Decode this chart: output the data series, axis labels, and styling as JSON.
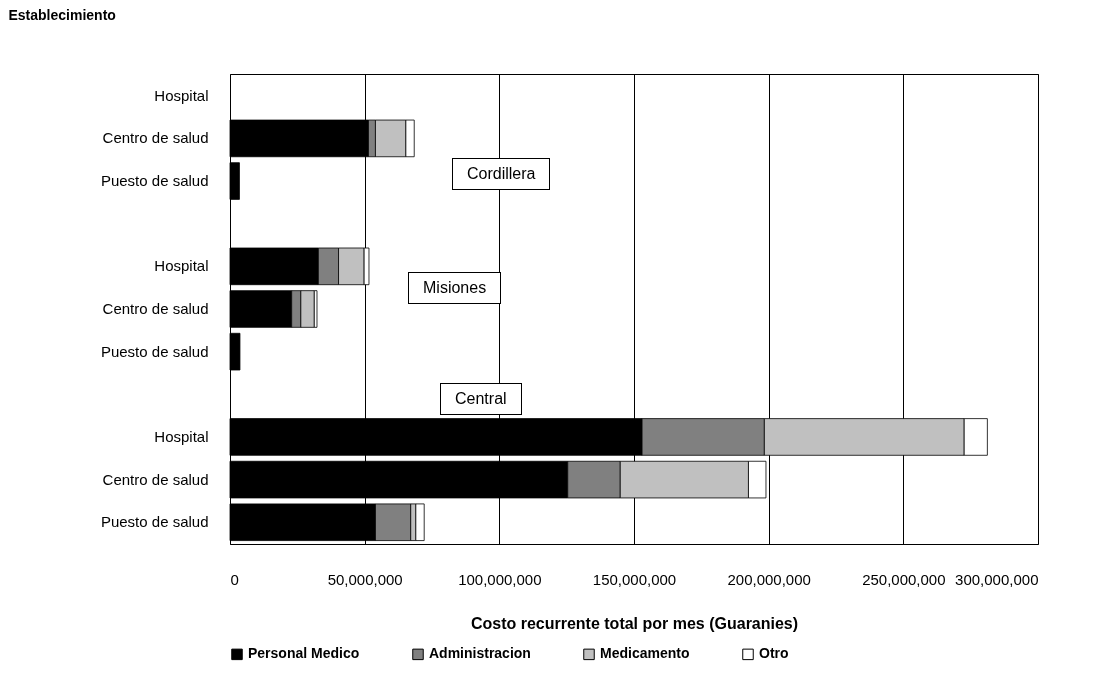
{
  "chart_data": {
    "type": "bar",
    "orientation": "horizontal",
    "stacked": true,
    "ylabel": "Establecimiento",
    "xlabel": "Costo recurrente total por mes (Guaranies)",
    "categories": [
      "Hospital",
      "Centro de salud",
      "Puesto de salud",
      null,
      "Hospital",
      "Centro de salud",
      "Puesto de salud",
      null,
      "Hospital",
      "Centro de salud",
      "Puesto de salud"
    ],
    "series": [
      {
        "name": "Personal Medico",
        "color": "#000000",
        "values": [
          null,
          51400000,
          3500000,
          null,
          32800000,
          22900000,
          3700000,
          null,
          153000000,
          125400000,
          54000000
        ]
      },
      {
        "name": "Administracion",
        "color": "#808080",
        "values": [
          null,
          2600000,
          null,
          null,
          7500000,
          3400000,
          null,
          null,
          45400000,
          19500000,
          13100000
        ]
      },
      {
        "name": "Medicamento",
        "color": "#c0c0c0",
        "values": [
          null,
          11300000,
          null,
          null,
          9500000,
          5000000,
          null,
          null,
          74200000,
          47600000,
          1900000
        ]
      },
      {
        "name": "Otro",
        "color": "#ffffff",
        "values": [
          null,
          3100000,
          null,
          null,
          1800000,
          1000000,
          null,
          null,
          8600000,
          6500000,
          3100000
        ]
      }
    ],
    "xlim": [
      0,
      300000000
    ],
    "xticks": [
      0,
      {
        "value": 50000000,
        "label": "50,000,000"
      },
      {
        "value": 100000000,
        "label": "100,000,000"
      },
      {
        "value": 150000000,
        "label": "150,000,000"
      },
      {
        "value": 200000000,
        "label": "200,000,000"
      },
      {
        "value": 250000000,
        "label": "250,000,000"
      },
      {
        "value": 300000000,
        "label": "300,000,000"
      }
    ],
    "grid": "x",
    "legend": "bottom",
    "annotations": [
      "Cordillera",
      "Misiones",
      "Central"
    ]
  }
}
